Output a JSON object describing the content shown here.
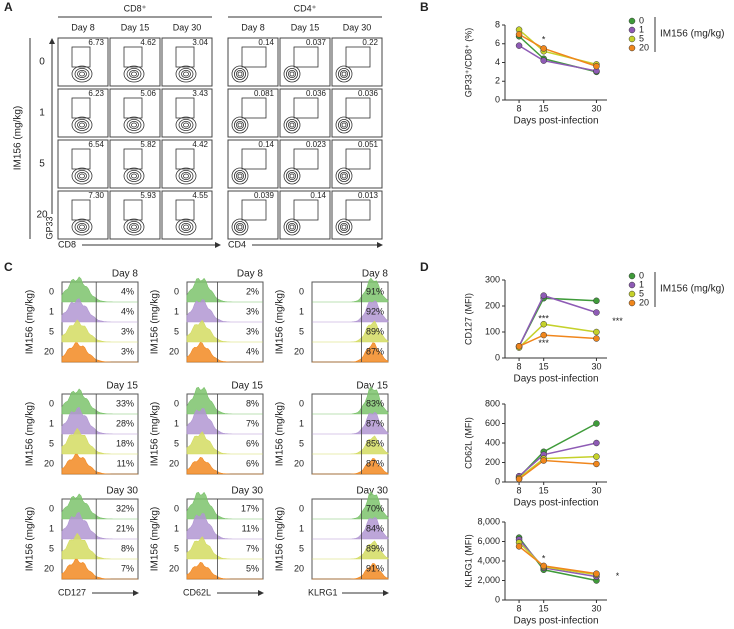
{
  "panel_labels": [
    "A",
    "B",
    "C",
    "D"
  ],
  "flow": {
    "groups": [
      "CD8⁺",
      "CD4⁺"
    ],
    "days": [
      "Day 8",
      "Day 15",
      "Day 30"
    ],
    "dose_title": "IM156 (mg/kg)",
    "doses": [
      "0",
      "1",
      "5",
      "20"
    ],
    "y_axis": "GP33",
    "x_axes": [
      "CD8",
      "CD4"
    ],
    "rows": [
      [
        "6.73",
        "4.62",
        "3.04",
        "0.14",
        "0.037",
        "0.22"
      ],
      [
        "6.23",
        "5.06",
        "3.43",
        "0.081",
        "0.036",
        "0.036"
      ],
      [
        "6.54",
        "5.82",
        "4.42",
        "0.14",
        "0.023",
        "0.051"
      ],
      [
        "7.30",
        "5.93",
        "4.55",
        "0.039",
        "0.14",
        "0.013"
      ]
    ]
  },
  "histograms": {
    "dose_title": "IM156 (mg/kg)",
    "doses": [
      "0",
      "1",
      "5",
      "20"
    ],
    "colors": [
      "#7cc36c",
      "#b196d2",
      "#d3dc62",
      "#f28a22"
    ],
    "markers": [
      "CD127",
      "CD62L",
      "KLRG1"
    ],
    "days": [
      "Day 8",
      "Day 15",
      "Day 30"
    ],
    "percents": [
      [
        [
          "4%",
          "4%",
          "3%",
          "3%"
        ],
        [
          "2%",
          "3%",
          "3%",
          "4%"
        ],
        [
          "91%",
          "92%",
          "89%",
          "87%"
        ]
      ],
      [
        [
          "33%",
          "28%",
          "18%",
          "11%"
        ],
        [
          "8%",
          "7%",
          "6%",
          "6%"
        ],
        [
          "83%",
          "87%",
          "85%",
          "87%"
        ]
      ],
      [
        [
          "32%",
          "21%",
          "8%",
          "7%"
        ],
        [
          "17%",
          "11%",
          "7%",
          "5%"
        ],
        [
          "70%",
          "84%",
          "89%",
          "91%"
        ]
      ]
    ]
  },
  "chart_data": [
    {
      "type": "line",
      "y_label": "GP33⁺/CD8⁺ (%)",
      "x_label": "Days post-infection",
      "x": [
        8,
        15,
        30
      ],
      "xlim": [
        4,
        33
      ],
      "xticks": [
        8,
        15,
        30
      ],
      "ylim": [
        0,
        8
      ],
      "yticks": [
        0,
        2,
        4,
        6,
        8
      ],
      "legend": "right",
      "legend_title": "IM156 (mg/kg)",
      "series": [
        {
          "name": "0",
          "color": "#3f9b3a",
          "values": [
            6.8,
            4.4,
            3.0
          ]
        },
        {
          "name": "1",
          "color": "#8e5bb5",
          "values": [
            5.8,
            4.2,
            3.1
          ]
        },
        {
          "name": "5",
          "color": "#c5d12a",
          "values": [
            7.5,
            5.2,
            3.8
          ]
        },
        {
          "name": "20",
          "color": "#f0861c",
          "values": [
            7.0,
            5.5,
            3.6
          ]
        }
      ],
      "annotations": [
        {
          "text": "*",
          "x": 15,
          "y": 6.4
        }
      ]
    },
    {
      "type": "line",
      "y_label": "CD127 (MFI)",
      "x_label": "Days post-infection",
      "x": [
        8,
        15,
        30
      ],
      "xlim": [
        4,
        33
      ],
      "xticks": [
        8,
        15,
        30
      ],
      "ylim": [
        0,
        300
      ],
      "yticks": [
        0,
        100,
        200,
        300
      ],
      "legend": "right",
      "legend_title": "IM156 (mg/kg)",
      "series": [
        {
          "name": "0",
          "color": "#3f9b3a",
          "values": [
            45,
            230,
            220
          ]
        },
        {
          "name": "1",
          "color": "#8e5bb5",
          "values": [
            45,
            240,
            175
          ]
        },
        {
          "name": "5",
          "color": "#c5d12a",
          "values": [
            40,
            130,
            100
          ]
        },
        {
          "name": "20",
          "color": "#f0861c",
          "values": [
            45,
            88,
            75
          ]
        }
      ],
      "annotations": [
        {
          "text": "***",
          "x": 15,
          "y": 150
        },
        {
          "text": "***",
          "x": 15,
          "y": 55
        },
        {
          "text": "***",
          "x": 36,
          "y": 140
        }
      ]
    },
    {
      "type": "line",
      "x_label": "Days post-infection",
      "y_label": "CD62L (MFI)",
      "x": [
        8,
        15,
        30
      ],
      "xlim": [
        4,
        33
      ],
      "xticks": [
        8,
        15,
        30
      ],
      "ylim": [
        0,
        800
      ],
      "yticks": [
        0,
        200,
        400,
        600,
        800
      ],
      "series": [
        {
          "color": "#3f9b3a",
          "values": [
            50,
            310,
            600
          ]
        },
        {
          "color": "#8e5bb5",
          "values": [
            60,
            280,
            400
          ]
        },
        {
          "color": "#c5d12a",
          "values": [
            40,
            240,
            260
          ]
        },
        {
          "color": "#f0861c",
          "values": [
            30,
            220,
            185
          ]
        }
      ]
    },
    {
      "type": "line",
      "x_label": "Days post-infection",
      "y_label": "KLRG1 (MFI)",
      "x": [
        8,
        15,
        30
      ],
      "xlim": [
        4,
        33
      ],
      "xticks": [
        8,
        15,
        30
      ],
      "ylim": [
        0,
        8000
      ],
      "yticks": [
        0,
        {
          "value": 2000,
          "label": "2,000"
        },
        {
          "value": 4000,
          "label": "4,000"
        },
        {
          "value": 6000,
          "label": "6,000"
        },
        {
          "value": 8000,
          "label": "8,000"
        }
      ],
      "series": [
        {
          "color": "#3f9b3a",
          "values": [
            6400,
            3100,
            2000
          ]
        },
        {
          "color": "#8e5bb5",
          "values": [
            6200,
            3300,
            2400
          ]
        },
        {
          "color": "#c5d12a",
          "values": [
            5900,
            3400,
            2600
          ]
        },
        {
          "color": "#f0861c",
          "values": [
            5500,
            3500,
            2700
          ]
        }
      ],
      "annotations": [
        {
          "text": "*",
          "x": 15,
          "y": 4200
        },
        {
          "text": "*",
          "x": 36,
          "y": 2400
        }
      ]
    }
  ]
}
